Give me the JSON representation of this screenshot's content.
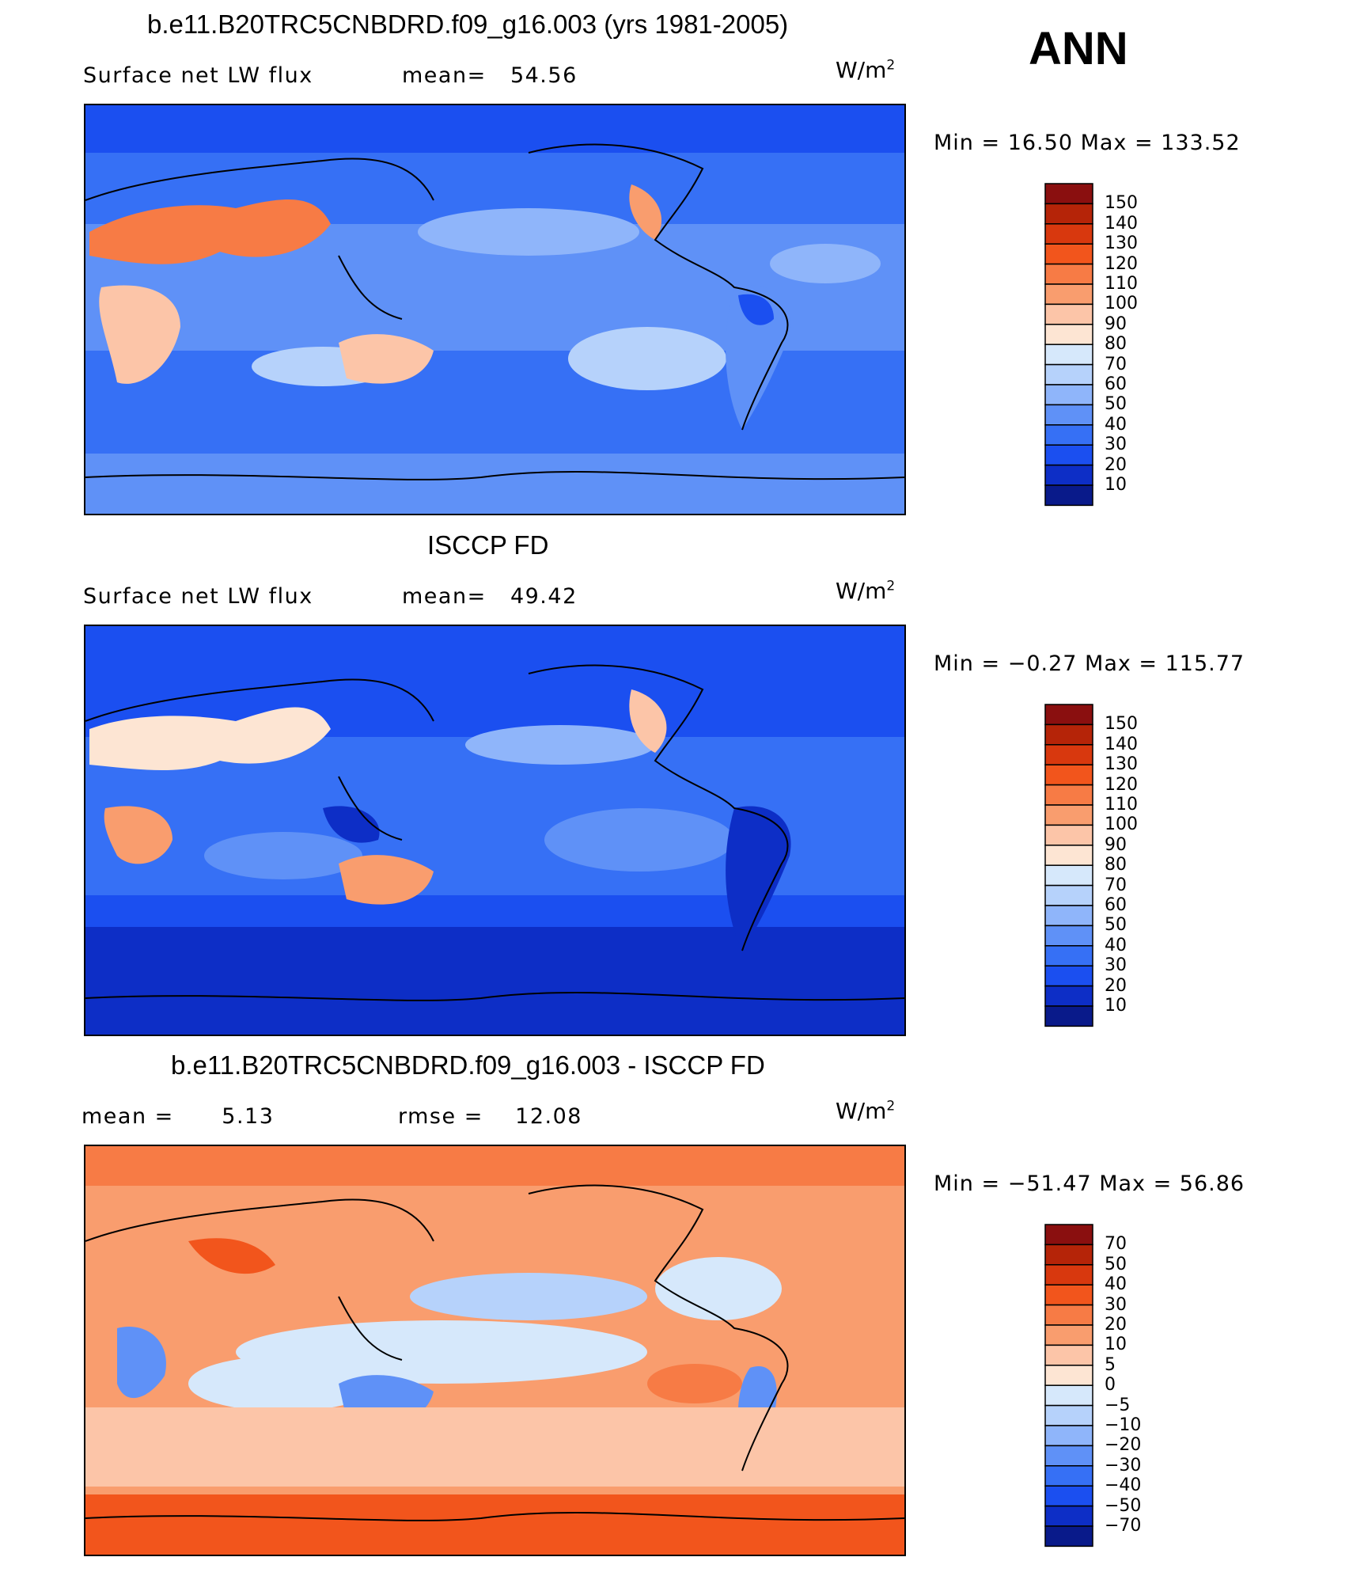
{
  "season": "ANN",
  "panels": [
    {
      "title": "b.e11.B20TRC5CNBDRD.f09_g16.003 (yrs 1981-2005)",
      "left_label": "Surface net LW flux",
      "mid_label": "mean=",
      "mid_value": "54.56",
      "units": "W/m",
      "units_sup": "2",
      "minmax": "Min =   16.50 Max  =  133.52",
      "colorbar": {
        "labels": [
          "150",
          "140",
          "130",
          "120",
          "110",
          "100",
          "90",
          "80",
          "70",
          "60",
          "50",
          "40",
          "30",
          "20",
          "10"
        ],
        "colors": [
          "#8a0f0f",
          "#b52408",
          "#d8380e",
          "#f2551c",
          "#f77b45",
          "#f99d6e",
          "#fcc5a8",
          "#fde5d3",
          "#d6e8fb",
          "#b6d2fb",
          "#8fb5fa",
          "#5f91f7",
          "#3670f5",
          "#1b4ff0",
          "#0d2ec6",
          "#091a8a"
        ]
      }
    },
    {
      "title": "ISCCP FD",
      "left_label": "Surface net LW flux",
      "mid_label": "mean=",
      "mid_value": "49.42",
      "units": "W/m",
      "units_sup": "2",
      "minmax": "Min =   −0.27 Max  =  115.77",
      "colorbar": {
        "labels": [
          "150",
          "140",
          "130",
          "120",
          "110",
          "100",
          "90",
          "80",
          "70",
          "60",
          "50",
          "40",
          "30",
          "20",
          "10"
        ],
        "colors": [
          "#8a0f0f",
          "#b52408",
          "#d8380e",
          "#f2551c",
          "#f77b45",
          "#f99d6e",
          "#fcc5a8",
          "#fde5d3",
          "#d6e8fb",
          "#b6d2fb",
          "#8fb5fa",
          "#5f91f7",
          "#3670f5",
          "#1b4ff0",
          "#0d2ec6",
          "#091a8a"
        ]
      }
    },
    {
      "title": "b.e11.B20TRC5CNBDRD.f09_g16.003 - ISCCP FD",
      "left_label": "mean =",
      "left_value": "5.13",
      "mid_label": "rmse =",
      "mid_value": "12.08",
      "units": "W/m",
      "units_sup": "2",
      "minmax": "Min = −51.47 Max =   56.86",
      "colorbar": {
        "labels": [
          "70",
          "50",
          "40",
          "30",
          "20",
          "10",
          "5",
          "0",
          "−5",
          "−10",
          "−20",
          "−30",
          "−40",
          "−50",
          "−70"
        ],
        "colors": [
          "#8a0f0f",
          "#b52408",
          "#d8380e",
          "#f2551c",
          "#f77b45",
          "#f99d6e",
          "#fcc5a8",
          "#fde5d3",
          "#d6e8fb",
          "#b6d2fb",
          "#8fb5fa",
          "#5f91f7",
          "#3670f5",
          "#1b4ff0",
          "#0d2ec6",
          "#091a8a"
        ]
      }
    }
  ]
}
